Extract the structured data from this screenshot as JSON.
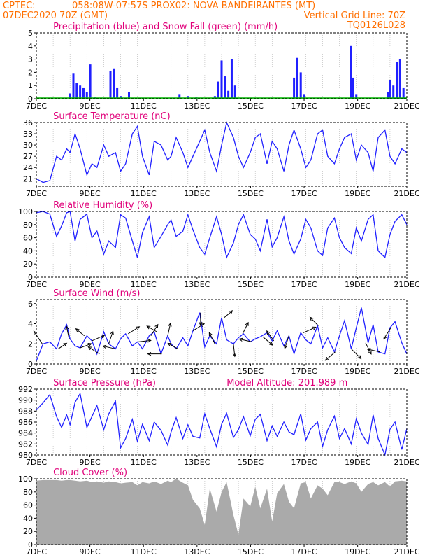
{
  "header": {
    "line1_left": "CPTEC:",
    "line1_center": "058:08W-07:57S  PROX02: NOVA BANDEIRANTES (MT)",
    "line2_left": "07DEC2020 70Z (GMT)",
    "line2_right": "Vertical Grid Line: 70Z",
    "line3_right": "TQ0126L028"
  },
  "colors": {
    "header": "#ff6f00",
    "title": "#e0007a",
    "series": "#2020ff",
    "snow": "#00b000",
    "cloud": "#aaaaaa",
    "wind_arrow": "#000000"
  },
  "chart_data": [
    {
      "type": "bar",
      "title": "Precipitation (blue) and Snow Fall (green) (mm/h)",
      "x": [
        0,
        1,
        2,
        2.2,
        2.4,
        2.6,
        2.8,
        3.0,
        3.2,
        3.5,
        3.8,
        4.0,
        4.4,
        4.6,
        4.8,
        5.0,
        5.5,
        6.0,
        7.5,
        8.0,
        8.5,
        9.0,
        9.5,
        10.0,
        10.4,
        10.6,
        10.8,
        11.0,
        11.2,
        11.4,
        11.6,
        11.8,
        12.0,
        12.5,
        13.0,
        13.5,
        14.0,
        15.0,
        15.3,
        15.5,
        15.7,
        15.9,
        16.0,
        17.0,
        18.0,
        18.6,
        18.7,
        18.8,
        19.0,
        19.5,
        20.0,
        20.7,
        20.9,
        21.0,
        21.2,
        21.4,
        21.6,
        21.8,
        22.0
      ],
      "series": [
        {
          "values": [
            0,
            0,
            0.4,
            1.9,
            1.2,
            1.0,
            0.8,
            0.5,
            2.6,
            0.1,
            0,
            0,
            2.1,
            2.3,
            0.8,
            0.2,
            0.5,
            0,
            0,
            0,
            0.3,
            0.2,
            0.1,
            0,
            0,
            0.2,
            1.3,
            2.9,
            1.7,
            0.6,
            3.0,
            1.0,
            0,
            0,
            0,
            0,
            0,
            0,
            1.6,
            3.1,
            2.0,
            0.3,
            0,
            0,
            0,
            0,
            4.0,
            1.6,
            0.3,
            0,
            0,
            0,
            0.5,
            1.4,
            1.0,
            2.8,
            3.0,
            0.8,
            0
          ]
        },
        {
          "values": [
            0.05,
            0.05,
            0.05,
            0.05,
            0.05,
            0.05,
            0.05,
            0.05,
            0.05,
            0.05,
            0.05,
            0.05,
            0.05,
            0.05,
            0.05,
            0.05,
            0.05,
            0.05,
            0.05,
            0.05,
            0.05,
            0.05,
            0.05,
            0.05,
            0.05,
            0.05,
            0.05,
            0.05,
            0.05,
            0.05,
            0.05,
            0.05,
            0.05,
            0.05,
            0.05,
            0.05,
            0.05,
            0.05,
            0.05,
            0.05,
            0.05,
            0.05,
            0.05,
            0.05,
            0.05,
            0.05,
            0.05,
            0.05,
            0.05,
            0.05,
            0.05,
            0.05,
            0.05,
            0.05,
            0.05,
            0.05,
            0.05,
            0.05,
            0.05
          ]
        }
      ],
      "ylim": [
        0,
        5
      ],
      "yticks": [
        0,
        1,
        2,
        3,
        4,
        5
      ],
      "xticks": [
        "7DEC",
        "9DEC",
        "11DEC",
        "13DEC",
        "15DEC",
        "17DEC",
        "19DEC",
        "21DEC"
      ]
    },
    {
      "type": "line",
      "title": "Surface Temperature (nC)",
      "x": [
        0,
        0.4,
        0.8,
        1.2,
        1.5,
        1.8,
        2.0,
        2.3,
        2.6,
        3.0,
        3.3,
        3.6,
        4.0,
        4.3,
        4.7,
        5.0,
        5.3,
        5.7,
        6.0,
        6.3,
        6.7,
        7.0,
        7.4,
        7.8,
        8.0,
        8.3,
        8.7,
        9.0,
        9.3,
        9.7,
        10.0,
        10.3,
        10.7,
        11.0,
        11.3,
        11.7,
        12.0,
        12.3,
        12.7,
        13.0,
        13.3,
        13.7,
        14.0,
        14.3,
        14.7,
        15.0,
        15.3,
        15.7,
        16.0,
        16.3,
        16.7,
        17.0,
        17.3,
        17.7,
        18.0,
        18.3,
        18.7,
        19.0,
        19.3,
        19.7,
        20.0,
        20.3,
        20.7,
        21.0,
        21.3,
        21.7,
        22.0
      ],
      "series": [
        {
          "values": [
            21,
            20,
            20.5,
            27,
            26,
            29,
            28,
            33,
            29,
            22,
            25,
            24,
            30,
            27,
            28,
            23,
            25,
            33,
            35,
            27,
            22,
            31,
            30,
            26,
            27,
            32,
            28,
            24,
            27,
            31,
            34,
            28,
            23,
            30,
            36,
            32,
            27,
            24,
            28,
            32,
            33,
            25,
            31,
            29,
            23,
            30,
            34,
            29,
            24,
            26,
            33,
            34,
            27,
            25,
            29,
            32,
            33,
            26,
            30,
            28,
            23,
            32,
            34,
            27,
            25,
            29,
            28
          ]
        }
      ],
      "ylim": [
        19,
        36
      ],
      "yticks": [
        21,
        24,
        27,
        30,
        33,
        36
      ],
      "xticks": [
        "7DEC",
        "9DEC",
        "11DEC",
        "13DEC",
        "15DEC",
        "17DEC",
        "19DEC",
        "21DEC"
      ]
    },
    {
      "type": "line",
      "title": "Relative Humidity (%)",
      "x": [
        0,
        0.4,
        0.8,
        1.2,
        1.5,
        1.8,
        2.0,
        2.3,
        2.6,
        3.0,
        3.3,
        3.6,
        4.0,
        4.3,
        4.7,
        5.0,
        5.3,
        5.7,
        6.0,
        6.3,
        6.7,
        7.0,
        7.4,
        7.8,
        8.0,
        8.3,
        8.7,
        9.0,
        9.3,
        9.7,
        10.0,
        10.3,
        10.7,
        11.0,
        11.3,
        11.7,
        12.0,
        12.3,
        12.7,
        13.0,
        13.3,
        13.7,
        14.0,
        14.3,
        14.7,
        15.0,
        15.3,
        15.7,
        16.0,
        16.3,
        16.7,
        17.0,
        17.3,
        17.7,
        18.0,
        18.3,
        18.7,
        19.0,
        19.3,
        19.7,
        20.0,
        20.3,
        20.7,
        21.0,
        21.3,
        21.7,
        22.0
      ],
      "series": [
        {
          "values": [
            98,
            100,
            96,
            62,
            78,
            98,
            100,
            55,
            88,
            96,
            60,
            70,
            35,
            55,
            45,
            95,
            90,
            55,
            30,
            68,
            92,
            45,
            62,
            80,
            87,
            62,
            70,
            95,
            72,
            45,
            35,
            60,
            92,
            65,
            30,
            52,
            80,
            95,
            65,
            58,
            40,
            88,
            46,
            60,
            92,
            55,
            35,
            58,
            88,
            75,
            40,
            33,
            75,
            90,
            60,
            45,
            36,
            75,
            55,
            88,
            95,
            40,
            30,
            65,
            85,
            95,
            80
          ]
        }
      ],
      "ylim": [
        0,
        100
      ],
      "yticks": [
        0,
        20,
        40,
        60,
        80,
        100
      ],
      "xticks": [
        "7DEC",
        "9DEC",
        "11DEC",
        "13DEC",
        "15DEC",
        "17DEC",
        "19DEC",
        "21DEC"
      ]
    },
    {
      "type": "line",
      "title": "Surface Wind (m/s)",
      "x": [
        0,
        0.4,
        0.8,
        1.2,
        1.5,
        1.8,
        2.0,
        2.3,
        2.6,
        3.0,
        3.3,
        3.6,
        4.0,
        4.3,
        4.7,
        5.0,
        5.3,
        5.7,
        6.0,
        6.3,
        6.7,
        7.0,
        7.4,
        7.8,
        8.0,
        8.3,
        8.7,
        9.0,
        9.3,
        9.7,
        10.0,
        10.3,
        10.7,
        11.0,
        11.3,
        11.7,
        12.0,
        12.3,
        12.7,
        13.0,
        13.3,
        13.7,
        14.0,
        14.3,
        14.7,
        15.0,
        15.3,
        15.7,
        16.0,
        16.3,
        16.7,
        17.0,
        17.3,
        17.7,
        18.0,
        18.3,
        18.7,
        19.0,
        19.3,
        19.7,
        20.0,
        20.3,
        20.7,
        21.0,
        21.3,
        21.7,
        22.0
      ],
      "series": [
        {
          "values": [
            0.3,
            2.0,
            2.2,
            1.5,
            3.0,
            3.9,
            2.5,
            1.8,
            1.6,
            2.8,
            2.3,
            1.0,
            3.2,
            2.0,
            1.5,
            2.5,
            3.0,
            1.8,
            2.2,
            1.5,
            2.8,
            3.2,
            1.0,
            2.8,
            2.0,
            1.5,
            2.6,
            1.8,
            3.3,
            5.1,
            1.7,
            2.8,
            2.0,
            4.6,
            2.4,
            2.0,
            2.6,
            3.0,
            2.2,
            2.5,
            2.7,
            3.1,
            2.3,
            3.3,
            1.8,
            2.8,
            1.0,
            3.1,
            2.4,
            2.0,
            3.8,
            1.6,
            2.6,
            1.2,
            2.8,
            4.3,
            1.5,
            3.6,
            5.6,
            2.1,
            3.9,
            1.2,
            1.0,
            3.6,
            4.2,
            2.1,
            1.0
          ]
        }
      ],
      "ylim": [
        0,
        6.4
      ],
      "yticks": [
        0,
        2,
        4,
        6
      ],
      "xticks": [
        "7DEC",
        "9DEC",
        "11DEC",
        "13DEC",
        "15DEC",
        "17DEC",
        "19DEC",
        "21DEC"
      ],
      "arrows": [
        {
          "x": 0.35,
          "u": -0.6,
          "v": 0.9
        },
        {
          "x": 1.3,
          "u": 0.6,
          "v": 0.4
        },
        {
          "x": 1.95,
          "u": -0.2,
          "v": 0.9
        },
        {
          "x": 2.6,
          "u": 0.8,
          "v": 0.3
        },
        {
          "x": 2.85,
          "u": -0.6,
          "v": 0.5
        },
        {
          "x": 3.3,
          "u": 0.9,
          "v": 0.4
        },
        {
          "x": 3.75,
          "u": -0.8,
          "v": 0.5
        },
        {
          "x": 4.3,
          "u": 0.3,
          "v": 0.9
        },
        {
          "x": 4.7,
          "u": -0.9,
          "v": 0.2
        },
        {
          "x": 5.45,
          "u": 0.8,
          "v": 0.5
        },
        {
          "x": 6.05,
          "u": 0.9,
          "v": 0.1
        },
        {
          "x": 6.8,
          "u": 0.5,
          "v": 0.8
        },
        {
          "x": 7.15,
          "u": -0.7,
          "v": 0.4
        },
        {
          "x": 7.45,
          "u": -1.0,
          "v": 0.0
        },
        {
          "x": 7.8,
          "u": 0.2,
          "v": 0.9
        },
        {
          "x": 8.4,
          "u": -0.7,
          "v": 0.4
        },
        {
          "x": 9.3,
          "u": 0.8,
          "v": 0.5
        },
        {
          "x": 9.75,
          "u": 0.0,
          "v": -0.9
        },
        {
          "x": 10.6,
          "u": -0.4,
          "v": 0.8
        },
        {
          "x": 11.15,
          "u": 0.6,
          "v": 0.5
        },
        {
          "x": 11.7,
          "u": 0.1,
          "v": -0.9
        },
        {
          "x": 12.25,
          "u": 0.4,
          "v": 0.8
        },
        {
          "x": 12.8,
          "u": -0.9,
          "v": 0.2
        },
        {
          "x": 13.45,
          "u": 0.7,
          "v": -0.6
        },
        {
          "x": 14.1,
          "u": -0.5,
          "v": 0.7
        },
        {
          "x": 15.0,
          "u": -0.3,
          "v": -0.9
        },
        {
          "x": 15.85,
          "u": 0.9,
          "v": 0.4
        },
        {
          "x": 16.75,
          "u": -0.6,
          "v": 0.6
        },
        {
          "x": 17.75,
          "u": -0.7,
          "v": -0.6
        },
        {
          "x": 18.7,
          "u": 0.7,
          "v": -0.7
        },
        {
          "x": 19.55,
          "u": 0.4,
          "v": -0.8
        },
        {
          "x": 20.4,
          "u": -0.9,
          "v": 0.2
        },
        {
          "x": 21.05,
          "u": -0.5,
          "v": -0.8
        }
      ]
    },
    {
      "type": "line",
      "title": "Surface Pressure (hPa)",
      "annotation": "Model Altitude: 201.989 m",
      "x": [
        0,
        0.4,
        0.8,
        1.2,
        1.5,
        1.8,
        2.0,
        2.3,
        2.6,
        3.0,
        3.3,
        3.6,
        4.0,
        4.3,
        4.7,
        5.0,
        5.3,
        5.7,
        6.0,
        6.3,
        6.7,
        7.0,
        7.4,
        7.8,
        8.0,
        8.3,
        8.7,
        9.0,
        9.3,
        9.7,
        10.0,
        10.3,
        10.7,
        11.0,
        11.3,
        11.7,
        12.0,
        12.3,
        12.7,
        13.0,
        13.3,
        13.7,
        14.0,
        14.3,
        14.7,
        15.0,
        15.3,
        15.7,
        16.0,
        16.3,
        16.7,
        17.0,
        17.3,
        17.7,
        18.0,
        18.3,
        18.7,
        19.0,
        19.3,
        19.7,
        20.0,
        20.3,
        20.7,
        21.0,
        21.3,
        21.7,
        22.0
      ],
      "series": [
        {
          "values": [
            988.2,
            989.5,
            991,
            987,
            985,
            987.3,
            985.5,
            989.6,
            991.2,
            985,
            987,
            989,
            984.6,
            987.5,
            989.8,
            981.3,
            983,
            986.5,
            982.5,
            985.6,
            982.6,
            986,
            984.5,
            981.8,
            984.2,
            986.8,
            983,
            985.5,
            983.4,
            983.1,
            987.5,
            984.8,
            981.5,
            985.6,
            987.6,
            983.2,
            984.6,
            987,
            983.5,
            986.5,
            987.4,
            982.6,
            985.3,
            983.4,
            986,
            984.2,
            983.7,
            987.5,
            982.7,
            984.8,
            986,
            981.6,
            984.6,
            987.1,
            983,
            984.8,
            982,
            986.6,
            984,
            981.9,
            987.3,
            983,
            980,
            984.7,
            986,
            981,
            984.8
          ]
        }
      ],
      "ylim": [
        980,
        992
      ],
      "yticks": [
        980,
        982,
        984,
        986,
        988,
        990,
        992
      ],
      "xticks": [
        "7DEC",
        "9DEC",
        "11DEC",
        "13DEC",
        "15DEC",
        "17DEC",
        "19DEC",
        "21DEC"
      ]
    },
    {
      "type": "area",
      "title": "Cloud Cover (%)",
      "x": [
        0,
        0.4,
        0.8,
        1.2,
        1.5,
        1.8,
        2.0,
        2.3,
        2.6,
        3.0,
        3.3,
        3.6,
        4.0,
        4.3,
        4.7,
        5.0,
        5.3,
        5.7,
        6.0,
        6.3,
        6.7,
        7.0,
        7.4,
        7.8,
        8.0,
        8.3,
        8.7,
        9.0,
        9.3,
        9.7,
        10.0,
        10.3,
        10.7,
        11.0,
        11.3,
        11.7,
        12.0,
        12.3,
        12.7,
        13.0,
        13.3,
        13.7,
        14.0,
        14.3,
        14.7,
        15.0,
        15.3,
        15.7,
        16.0,
        16.3,
        16.7,
        17.0,
        17.3,
        17.7,
        18.0,
        18.3,
        18.7,
        19.0,
        19.3,
        19.7,
        20.0,
        20.3,
        20.7,
        21.0,
        21.3,
        21.7,
        22.0
      ],
      "series": [
        {
          "values": [
            97,
            98,
            98,
            98,
            97,
            98,
            98,
            97,
            96,
            97,
            95,
            96,
            94,
            96,
            95,
            93,
            94,
            95,
            90,
            95,
            93,
            96,
            92,
            97,
            95,
            100,
            94,
            90,
            68,
            55,
            30,
            85,
            50,
            80,
            95,
            45,
            15,
            70,
            58,
            88,
            55,
            85,
            35,
            78,
            92,
            65,
            55,
            93,
            95,
            70,
            90,
            85,
            75,
            95,
            95,
            92,
            96,
            93,
            80,
            92,
            95,
            90,
            95,
            88,
            96,
            97,
            96
          ]
        }
      ],
      "ylim": [
        0,
        100
      ],
      "yticks": [
        0,
        20,
        40,
        60,
        80,
        100
      ],
      "xticks": [
        "7DEC",
        "9DEC",
        "11DEC",
        "13DEC",
        "15DEC",
        "17DEC",
        "19DEC",
        "21DEC"
      ]
    }
  ]
}
